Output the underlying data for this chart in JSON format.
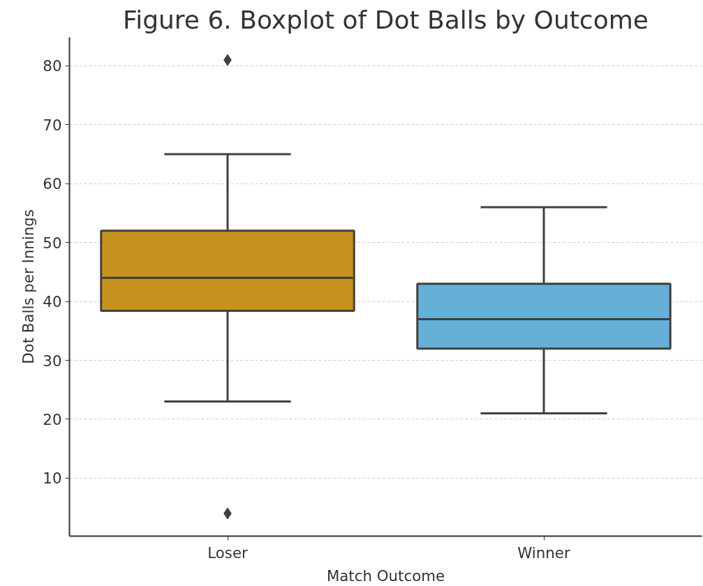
{
  "chart_data": {
    "type": "box",
    "title": "Figure 6. Boxplot of Dot Balls by Outcome",
    "xlabel": "Match Outcome",
    "ylabel": "Dot Balls per Innings",
    "categories": [
      "Loser",
      "Winner"
    ],
    "colors": [
      "#c8921f",
      "#66afd6"
    ],
    "boxes": [
      {
        "low": 23,
        "q1": 38.4,
        "median": 44,
        "q3": 52,
        "high": 65,
        "outliers": [
          81,
          4
        ]
      },
      {
        "low": 21,
        "q1": 32,
        "median": 37,
        "q3": 43,
        "high": 56
      }
    ],
    "ylim": [
      0.15,
      84.85
    ],
    "yticks": [
      10,
      20,
      30,
      40,
      50,
      60,
      70,
      80
    ],
    "grid": "y",
    "marker": "diamond"
  }
}
